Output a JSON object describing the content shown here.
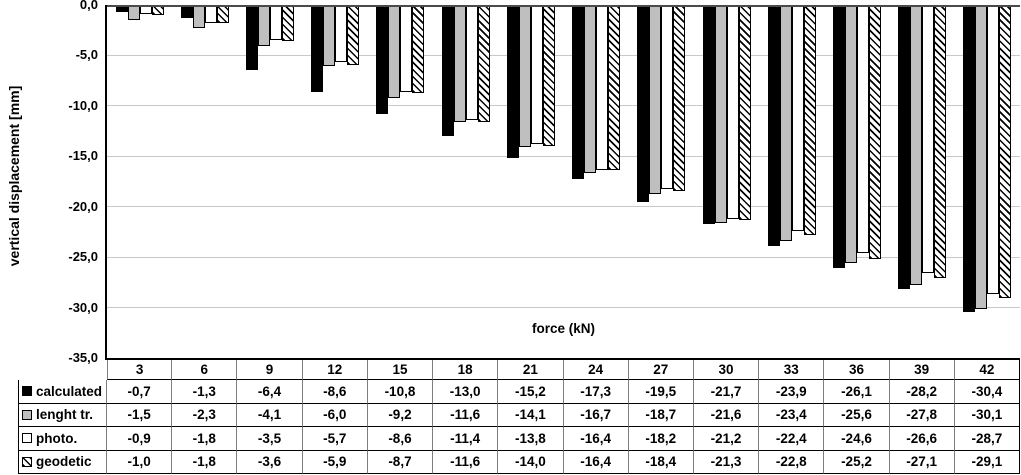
{
  "chart_data": {
    "type": "bar",
    "title": "",
    "xlabel": "force (kN)",
    "ylabel": "vertical displacement [mm]",
    "ylim": [
      -35,
      0
    ],
    "ytick_step": 5,
    "ytick_labels": [
      "0,0",
      "-5,0",
      "-10,0",
      "-15,0",
      "-20,0",
      "-25,0",
      "-30,0",
      "-35,0"
    ],
    "grid": true,
    "legend_position": "table-rows-left",
    "categories": [
      "3",
      "6",
      "9",
      "12",
      "15",
      "18",
      "21",
      "24",
      "27",
      "30",
      "33",
      "36",
      "39",
      "42"
    ],
    "series": [
      {
        "name": "calculated",
        "style": "solid-black",
        "values": [
          -0.7,
          -1.3,
          -6.4,
          -8.6,
          -10.8,
          -13.0,
          -15.2,
          -17.3,
          -19.5,
          -21.7,
          -23.9,
          -26.1,
          -28.2,
          -30.4
        ]
      },
      {
        "name": "lenght tr.",
        "style": "solid-gray",
        "values": [
          -1.5,
          -2.3,
          -4.1,
          -6.0,
          -9.2,
          -11.6,
          -14.1,
          -16.7,
          -18.7,
          -21.6,
          -23.4,
          -25.6,
          -27.8,
          -30.1
        ]
      },
      {
        "name": "photo.",
        "style": "solid-white",
        "values": [
          -0.9,
          -1.8,
          -3.5,
          -5.7,
          -8.6,
          -11.4,
          -13.8,
          -16.4,
          -18.2,
          -21.2,
          -22.4,
          -24.6,
          -26.6,
          -28.7
        ]
      },
      {
        "name": "geodetic",
        "style": "hatch",
        "values": [
          -1.0,
          -1.8,
          -3.6,
          -5.9,
          -8.7,
          -11.6,
          -14.0,
          -16.4,
          -18.4,
          -21.3,
          -22.8,
          -25.2,
          -27.1,
          -29.1
        ]
      }
    ],
    "colors": {
      "bar_black": "#000000",
      "bar_gray": "#bfbfbf",
      "bar_white": "#ffffff",
      "bar_border": "#000000",
      "hatch_fg": "#000000",
      "hatch_bg": "#ffffff",
      "gridline": "#c8c8c8",
      "zero_line": "#4a4a4a",
      "axis": "#000000",
      "text": "#000000"
    }
  }
}
